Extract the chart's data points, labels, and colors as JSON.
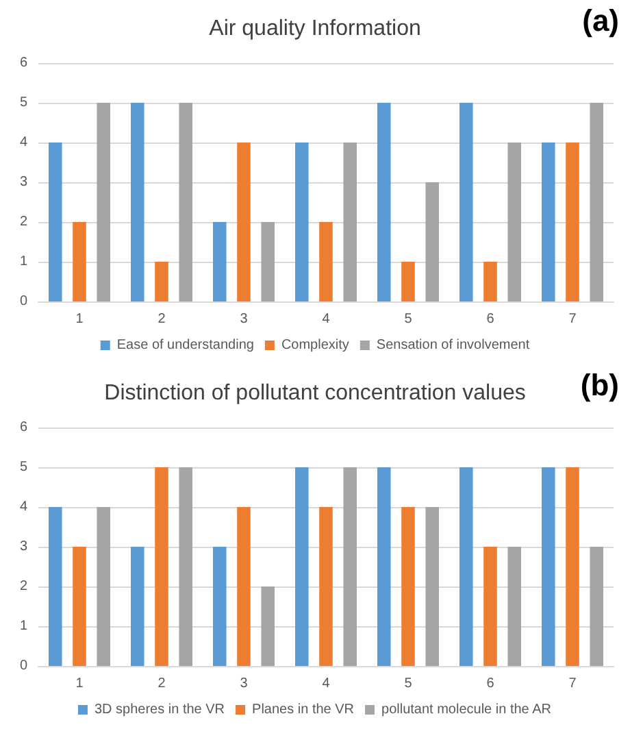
{
  "chart_data": [
    {
      "type": "bar",
      "title": "Air quality Information",
      "annotations": [
        "(a)"
      ],
      "categories": [
        "1",
        "2",
        "3",
        "4",
        "5",
        "6",
        "7"
      ],
      "series": [
        {
          "name": "Ease of understanding",
          "color": "#5b9bd5",
          "values": [
            4,
            5,
            2,
            4,
            5,
            5,
            4
          ]
        },
        {
          "name": "Complexity",
          "color": "#ed7d31",
          "values": [
            2,
            1,
            4,
            2,
            1,
            1,
            4
          ]
        },
        {
          "name": "Sensation of involvement",
          "color": "#a5a5a5",
          "values": [
            5,
            5,
            2,
            4,
            3,
            4,
            5
          ]
        }
      ],
      "ylim": [
        0,
        6
      ],
      "yticks": [
        0,
        1,
        2,
        3,
        4,
        5,
        6
      ],
      "grid": "y",
      "legend": "bottom"
    },
    {
      "type": "bar",
      "title": "Distinction of pollutant concentration values",
      "annotations": [
        "(b)"
      ],
      "categories": [
        "1",
        "2",
        "3",
        "4",
        "5",
        "6",
        "7"
      ],
      "series": [
        {
          "name": "3D spheres in the VR",
          "color": "#5b9bd5",
          "values": [
            4,
            3,
            3,
            5,
            5,
            5,
            5
          ]
        },
        {
          "name": "Planes in the VR",
          "color": "#ed7d31",
          "values": [
            3,
            5,
            4,
            4,
            4,
            3,
            5
          ]
        },
        {
          "name": "pollutant molecule in the AR",
          "color": "#a5a5a5",
          "values": [
            4,
            5,
            2,
            5,
            4,
            3,
            3
          ]
        }
      ],
      "ylim": [
        0,
        6
      ],
      "yticks": [
        0,
        1,
        2,
        3,
        4,
        5,
        6
      ],
      "grid": "y",
      "legend": "bottom"
    }
  ]
}
